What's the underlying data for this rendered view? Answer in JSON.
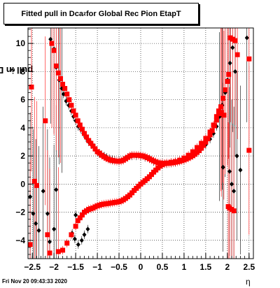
{
  "title_prefix": "Fitted pull in Dca",
  "title_sub": "z",
  "title_suffix": " for Global Rec Pion EtapT",
  "ylabel_prefix": "pull in Dca",
  "ylabel_sub": "z",
  "xlabel": "η",
  "footer": "Fri Nov 20 09:43:33 2020",
  "colors": {
    "black_series": "#000000",
    "red_series": "#ff0000",
    "grid": "#000000"
  },
  "chart_data": {
    "type": "scatter",
    "xlim": [
      -2.6,
      2.6
    ],
    "ylim": [
      -5.3,
      11.1
    ],
    "grid": true,
    "x_ticks": [
      "−2.5",
      "−2",
      "−1.5",
      "−1",
      "−0.5",
      "0",
      "0.5",
      "1",
      "1.5",
      "2",
      "2.5"
    ],
    "x_tick_values": [
      -2.5,
      -2,
      -1.5,
      -1,
      -0.5,
      0,
      0.5,
      1,
      1.5,
      2,
      2.5
    ],
    "y_ticks": [
      "−4",
      "−2",
      "0",
      "2",
      "4",
      "6",
      "8",
      "10"
    ],
    "y_tick_values": [
      -4,
      -2,
      0,
      2,
      4,
      6,
      8,
      10
    ],
    "series": [
      {
        "marker": "diamond",
        "color": "#000000",
        "points": [
          [
            -2.55,
            -0.9
          ],
          [
            -2.48,
            -2.1
          ],
          [
            -2.42,
            -2.8
          ],
          [
            -2.35,
            -3.3
          ],
          [
            -2.25,
            -0.5
          ],
          [
            -2.15,
            -2.1
          ],
          [
            -2.08,
            10.3
          ],
          [
            -2.0,
            9.6
          ],
          [
            -1.95,
            8.3
          ],
          [
            -1.88,
            7.4
          ],
          [
            -1.82,
            6.8
          ],
          [
            -1.78,
            6.4
          ],
          [
            -1.72,
            5.9
          ],
          [
            -1.66,
            5.6
          ],
          [
            -1.6,
            5.2
          ],
          [
            -1.55,
            4.8
          ],
          [
            -1.5,
            4.5
          ],
          [
            -1.44,
            4.1
          ],
          [
            -1.38,
            3.9
          ],
          [
            -1.32,
            3.6
          ],
          [
            -1.26,
            3.3
          ],
          [
            -1.2,
            3.0
          ],
          [
            -1.14,
            2.8
          ],
          [
            -1.08,
            2.6
          ],
          [
            -1.02,
            2.4
          ],
          [
            -0.96,
            2.2
          ],
          [
            -0.9,
            2.1
          ],
          [
            -0.84,
            2.0
          ],
          [
            -0.78,
            1.9
          ],
          [
            -0.72,
            1.8
          ],
          [
            -0.66,
            1.75
          ],
          [
            -0.6,
            1.7
          ],
          [
            -0.5,
            1.65
          ],
          [
            -0.4,
            1.7
          ],
          [
            -0.3,
            1.9
          ],
          [
            -0.2,
            2.0
          ],
          [
            -0.1,
            2.0
          ],
          [
            0.0,
            2.0
          ],
          [
            0.1,
            1.9
          ],
          [
            0.2,
            1.8
          ],
          [
            0.3,
            1.6
          ],
          [
            0.4,
            1.5
          ],
          [
            0.5,
            1.45
          ],
          [
            0.6,
            1.45
          ],
          [
            0.7,
            1.5
          ],
          [
            0.8,
            1.55
          ],
          [
            0.9,
            1.65
          ],
          [
            1.0,
            1.75
          ],
          [
            1.1,
            1.9
          ],
          [
            1.2,
            2.05
          ],
          [
            1.3,
            2.25
          ],
          [
            1.4,
            2.5
          ],
          [
            1.5,
            2.8
          ],
          [
            1.6,
            3.2
          ],
          [
            1.68,
            3.6
          ],
          [
            1.75,
            4.1
          ],
          [
            1.82,
            4.8
          ],
          [
            1.88,
            5.6
          ],
          [
            1.95,
            6.5
          ],
          [
            2.0,
            7.4
          ],
          [
            2.06,
            8.6
          ],
          [
            2.12,
            9.7
          ],
          [
            2.18,
            8.0
          ],
          [
            2.22,
            2.0
          ],
          [
            2.3,
            1.0
          ],
          [
            2.45,
            10.4
          ],
          [
            2.05,
            0.9
          ],
          [
            2.1,
            0.0
          ],
          [
            2.15,
            -0.5
          ],
          [
            1.9,
            1.2
          ],
          [
            -1.95,
            -0.4
          ],
          [
            -2.1,
            -4.1
          ],
          [
            -2.0,
            -3.2
          ],
          [
            -1.5,
            -2.2
          ],
          [
            -1.58,
            -3.5
          ],
          [
            -1.52,
            -3.9
          ],
          [
            -1.44,
            -4.3
          ],
          [
            -1.36,
            -4.0
          ],
          [
            -1.3,
            -3.6
          ],
          [
            -1.22,
            -3.2
          ]
        ]
      },
      {
        "marker": "square",
        "color": "#ff0000",
        "points": [
          [
            -2.55,
            -4.3
          ],
          [
            -2.52,
            6.9
          ],
          [
            -2.45,
            0.2
          ],
          [
            -2.4,
            -0.1
          ],
          [
            -2.2,
            4.5
          ],
          [
            -2.15,
            -3.6
          ],
          [
            -2.1,
            -4.9
          ],
          [
            -2.05,
            10.0
          ],
          [
            -2.0,
            9.5
          ],
          [
            -1.95,
            8.4
          ],
          [
            -1.9,
            7.9
          ],
          [
            -1.85,
            7.5
          ],
          [
            -1.8,
            7.1
          ],
          [
            -1.75,
            6.8
          ],
          [
            -1.7,
            6.4
          ],
          [
            -1.65,
            6.0
          ],
          [
            -1.6,
            5.6
          ],
          [
            -1.55,
            5.2
          ],
          [
            -1.5,
            4.9
          ],
          [
            -1.45,
            4.5
          ],
          [
            -1.4,
            4.2
          ],
          [
            -1.35,
            3.9
          ],
          [
            -1.3,
            3.6
          ],
          [
            -1.25,
            3.35
          ],
          [
            -1.2,
            3.1
          ],
          [
            -1.15,
            2.9
          ],
          [
            -1.1,
            2.7
          ],
          [
            -1.05,
            2.5
          ],
          [
            -1.0,
            2.3
          ],
          [
            -0.95,
            2.2
          ],
          [
            -0.9,
            2.05
          ],
          [
            -0.85,
            1.95
          ],
          [
            -0.8,
            1.85
          ],
          [
            -0.75,
            1.78
          ],
          [
            -0.7,
            1.72
          ],
          [
            -0.65,
            1.68
          ],
          [
            -0.6,
            1.65
          ],
          [
            -0.55,
            1.63
          ],
          [
            -0.5,
            1.62
          ],
          [
            -0.45,
            1.65
          ],
          [
            -0.4,
            1.7
          ],
          [
            -0.35,
            1.8
          ],
          [
            -0.3,
            1.9
          ],
          [
            -0.25,
            2.0
          ],
          [
            -0.2,
            2.05
          ],
          [
            -0.15,
            2.05
          ],
          [
            -0.1,
            2.05
          ],
          [
            -0.05,
            2.05
          ],
          [
            0.0,
            2.02
          ],
          [
            0.05,
            2.0
          ],
          [
            0.1,
            1.95
          ],
          [
            0.15,
            1.88
          ],
          [
            0.2,
            1.8
          ],
          [
            0.25,
            1.72
          ],
          [
            0.3,
            1.65
          ],
          [
            0.35,
            1.58
          ],
          [
            0.4,
            1.52
          ],
          [
            0.45,
            1.5
          ],
          [
            0.5,
            1.48
          ],
          [
            0.55,
            1.47
          ],
          [
            0.6,
            1.47
          ],
          [
            0.65,
            1.48
          ],
          [
            0.7,
            1.5
          ],
          [
            0.75,
            1.52
          ],
          [
            0.8,
            1.55
          ],
          [
            0.85,
            1.58
          ],
          [
            0.9,
            1.62
          ],
          [
            0.95,
            1.67
          ],
          [
            1.0,
            1.72
          ],
          [
            1.05,
            1.78
          ],
          [
            1.1,
            1.85
          ],
          [
            1.15,
            1.93
          ],
          [
            1.2,
            2.02
          ],
          [
            1.25,
            2.12
          ],
          [
            1.3,
            2.25
          ],
          [
            1.35,
            2.38
          ],
          [
            1.4,
            2.55
          ],
          [
            1.45,
            2.75
          ],
          [
            1.5,
            2.98
          ],
          [
            1.55,
            3.22
          ],
          [
            1.6,
            3.5
          ],
          [
            1.65,
            3.8
          ],
          [
            1.7,
            4.15
          ],
          [
            1.75,
            4.55
          ],
          [
            1.8,
            5.0
          ],
          [
            1.85,
            5.5
          ],
          [
            1.9,
            6.1
          ],
          [
            1.95,
            6.7
          ],
          [
            2.0,
            7.3
          ],
          [
            2.03,
            7.8
          ],
          [
            2.07,
            10.4
          ],
          [
            2.12,
            10.3
          ],
          [
            2.18,
            10.2
          ],
          [
            2.23,
            9.2
          ],
          [
            2.5,
            8.9
          ],
          [
            2.5,
            2.4
          ],
          [
            2.05,
            -1.7
          ],
          [
            2.1,
            -1.8
          ],
          [
            2.15,
            -1.9
          ],
          [
            2.02,
            -1.6
          ],
          [
            -1.9,
            -4.8
          ],
          [
            -1.8,
            -4.7
          ],
          [
            -1.7,
            -4.2
          ],
          [
            -1.6,
            -3.6
          ],
          [
            -1.5,
            -3.0
          ],
          [
            -1.45,
            -2.6
          ],
          [
            -1.4,
            -2.4
          ],
          [
            -1.35,
            -2.2
          ],
          [
            -1.3,
            -2.0
          ],
          [
            -1.25,
            -1.9
          ],
          [
            -1.2,
            -1.8
          ],
          [
            -1.15,
            -1.75
          ],
          [
            -1.1,
            -1.7
          ],
          [
            -1.05,
            -1.62
          ],
          [
            -1.0,
            -1.55
          ],
          [
            -0.95,
            -1.5
          ],
          [
            -0.9,
            -1.45
          ],
          [
            -0.85,
            -1.42
          ],
          [
            -0.8,
            -1.4
          ],
          [
            -0.75,
            -1.38
          ],
          [
            -0.7,
            -1.35
          ],
          [
            -0.65,
            -1.33
          ],
          [
            -0.6,
            -1.3
          ],
          [
            -0.55,
            -1.28
          ],
          [
            -0.5,
            -1.25
          ],
          [
            -0.45,
            -1.2
          ],
          [
            -0.4,
            -1.12
          ],
          [
            -0.35,
            -1.02
          ],
          [
            -0.3,
            -0.9
          ],
          [
            -0.25,
            -0.78
          ],
          [
            -0.2,
            -0.62
          ],
          [
            -0.15,
            -0.45
          ],
          [
            -0.1,
            -0.3
          ],
          [
            -0.05,
            -0.15
          ],
          [
            0.0,
            0.0
          ],
          [
            0.05,
            0.12
          ],
          [
            0.1,
            0.25
          ],
          [
            0.15,
            0.38
          ],
          [
            0.2,
            0.52
          ],
          [
            0.25,
            0.68
          ],
          [
            0.3,
            0.85
          ],
          [
            0.35,
            1.0
          ],
          [
            0.4,
            1.15
          ],
          [
            0.45,
            1.28
          ],
          [
            0.5,
            1.38
          ],
          [
            0.55,
            1.45
          ],
          [
            0.6,
            1.5
          ],
          [
            0.7,
            1.55
          ],
          [
            0.8,
            1.6
          ],
          [
            0.9,
            1.7
          ],
          [
            1.0,
            1.85
          ],
          [
            1.1,
            2.05
          ],
          [
            1.2,
            2.3
          ],
          [
            1.3,
            2.6
          ],
          [
            1.4,
            2.9
          ],
          [
            1.5,
            3.25
          ],
          [
            1.6,
            3.7
          ],
          [
            1.68,
            4.2
          ],
          [
            1.75,
            4.8
          ],
          [
            1.8,
            5.2
          ],
          [
            1.86,
            5.1
          ],
          [
            1.92,
            4.9
          ]
        ]
      }
    ]
  }
}
